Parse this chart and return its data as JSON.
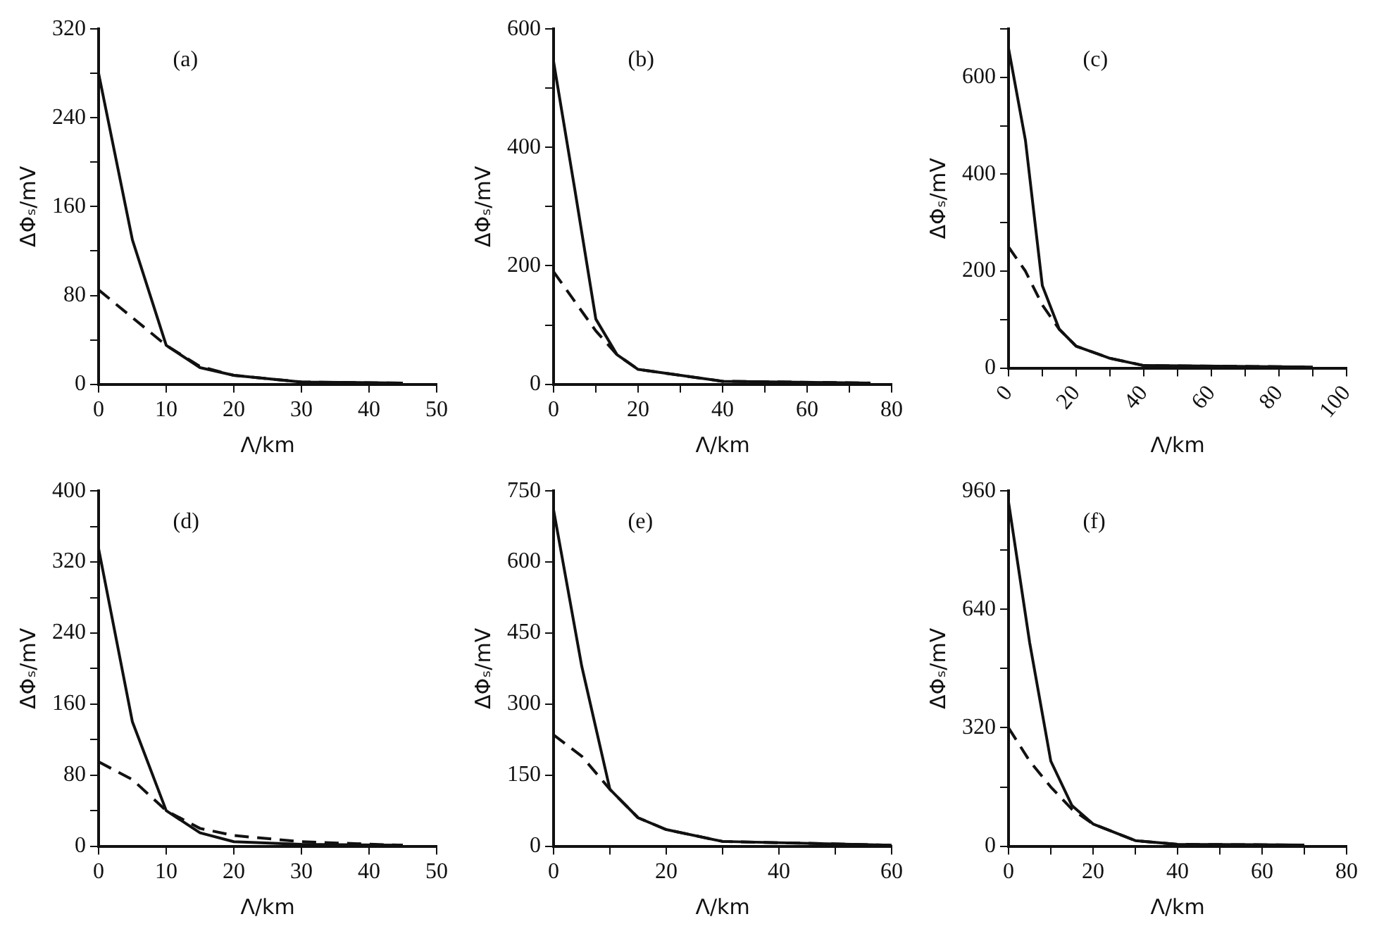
{
  "chart_data": [
    {
      "type": "line",
      "annotations": [
        "(a)"
      ],
      "xlabel": "Λ/km",
      "ylabel": "ΔΦₛ/mV",
      "xlim": [
        0,
        50
      ],
      "xticks": [
        0,
        10,
        20,
        30,
        40,
        50
      ],
      "ylim": [
        0,
        320
      ],
      "yticks": [
        0,
        {
          "value": 40,
          "label": null
        },
        80,
        {
          "value": 120,
          "label": null
        },
        160,
        {
          "value": 200,
          "label": null
        },
        240,
        {
          "value": 280,
          "label": null
        },
        320
      ],
      "grid": false,
      "legend": false,
      "marker": "none",
      "series": [
        {
          "color": "#111111",
          "line_style": "solid",
          "x": [
            0,
            5,
            10,
            15,
            20,
            30,
            45
          ],
          "values": [
            280,
            130,
            35,
            15,
            8,
            2,
            1
          ]
        },
        {
          "color": "#111111",
          "line_style": "dashed",
          "x": [
            0,
            5,
            10,
            15,
            20,
            30,
            45
          ],
          "values": [
            85,
            60,
            35,
            16,
            8,
            2,
            1
          ]
        }
      ]
    },
    {
      "type": "line",
      "annotations": [
        "(b)"
      ],
      "xlabel": "Λ/km",
      "ylabel": "ΔΦₛ/mV",
      "xlim": [
        0,
        80
      ],
      "xticks": [
        0,
        {
          "value": 10,
          "label": null
        },
        20,
        {
          "value": 30,
          "label": null
        },
        40,
        {
          "value": 50,
          "label": null
        },
        60,
        {
          "value": 70,
          "label": null
        },
        80
      ],
      "ylim": [
        0,
        600
      ],
      "yticks": [
        0,
        {
          "value": 100,
          "label": null
        },
        200,
        {
          "value": 300,
          "label": null
        },
        400,
        {
          "value": 500,
          "label": null
        },
        600
      ],
      "grid": false,
      "legend": false,
      "marker": "none",
      "series": [
        {
          "color": "#111111",
          "line_style": "solid",
          "x": [
            0,
            5,
            10,
            15,
            20,
            40,
            75
          ],
          "values": [
            545,
            330,
            110,
            50,
            25,
            5,
            2
          ]
        },
        {
          "color": "#111111",
          "line_style": "dashed",
          "x": [
            0,
            5,
            10,
            15,
            20,
            40,
            75
          ],
          "values": [
            190,
            140,
            90,
            50,
            25,
            5,
            2
          ]
        }
      ]
    },
    {
      "type": "line",
      "annotations": [
        "(c)"
      ],
      "xlabel": "Λ/km",
      "ylabel": "ΔΦₛ/mV",
      "xlim": [
        0,
        100
      ],
      "xticks": [
        0,
        {
          "value": 10,
          "label": null
        },
        20,
        {
          "value": 30,
          "label": null
        },
        40,
        {
          "value": 50,
          "label": null
        },
        60,
        {
          "value": 70,
          "label": null
        },
        80,
        {
          "value": 90,
          "label": null
        },
        100
      ],
      "ylim": [
        0,
        700
      ],
      "yticks": [
        0,
        {
          "value": 100,
          "label": null
        },
        200,
        {
          "value": 300,
          "label": null
        },
        400,
        {
          "value": 500,
          "label": null
        },
        600,
        {
          "value": 700,
          "label": null
        }
      ],
      "grid": false,
      "legend": false,
      "marker": "none",
      "series": [
        {
          "color": "#111111",
          "line_style": "solid",
          "x": [
            0,
            5,
            10,
            15,
            20,
            30,
            40,
            90
          ],
          "values": [
            660,
            470,
            170,
            80,
            45,
            20,
            5,
            2
          ]
        },
        {
          "color": "#111111",
          "line_style": "dashed",
          "x": [
            0,
            5,
            10,
            15,
            20,
            30,
            40,
            90
          ],
          "values": [
            250,
            200,
            130,
            80,
            45,
            20,
            5,
            2
          ]
        }
      ]
    },
    {
      "type": "line",
      "annotations": [
        "(d)"
      ],
      "xlabel": "Λ/km",
      "ylabel": "ΔΦₛ/mV",
      "xlim": [
        0,
        50
      ],
      "xticks": [
        0,
        10,
        20,
        30,
        40,
        50
      ],
      "ylim": [
        0,
        400
      ],
      "yticks": [
        0,
        {
          "value": 40,
          "label": null
        },
        80,
        {
          "value": 120,
          "label": null
        },
        160,
        {
          "value": 200,
          "label": null
        },
        240,
        {
          "value": 280,
          "label": null
        },
        320,
        {
          "value": 360,
          "label": null
        },
        400
      ],
      "grid": false,
      "legend": false,
      "marker": "none",
      "series": [
        {
          "color": "#111111",
          "line_style": "solid",
          "x": [
            0,
            5,
            10,
            15,
            20,
            30,
            45
          ],
          "values": [
            335,
            140,
            40,
            15,
            5,
            2,
            1
          ]
        },
        {
          "color": "#111111",
          "line_style": "dashed",
          "x": [
            0,
            5,
            10,
            15,
            20,
            30,
            45
          ],
          "values": [
            95,
            75,
            40,
            20,
            12,
            5,
            1
          ]
        }
      ]
    },
    {
      "type": "line",
      "annotations": [
        "(e)"
      ],
      "xlabel": "Λ/km",
      "ylabel": "ΔΦₛ/mV",
      "xlim": [
        0,
        60
      ],
      "xticks": [
        0,
        {
          "value": 10,
          "label": null
        },
        20,
        {
          "value": 30,
          "label": null
        },
        40,
        {
          "value": 50,
          "label": null
        },
        60
      ],
      "ylim": [
        0,
        750
      ],
      "yticks": [
        0,
        150,
        300,
        450,
        600,
        750
      ],
      "grid": false,
      "legend": false,
      "marker": "none",
      "series": [
        {
          "color": "#111111",
          "line_style": "solid",
          "x": [
            0,
            5,
            10,
            15,
            20,
            30,
            60
          ],
          "values": [
            710,
            380,
            120,
            60,
            35,
            10,
            2
          ]
        },
        {
          "color": "#111111",
          "line_style": "dashed",
          "x": [
            0,
            5,
            10,
            15,
            20,
            30,
            60
          ],
          "values": [
            235,
            190,
            120,
            60,
            35,
            10,
            2
          ]
        }
      ]
    },
    {
      "type": "line",
      "annotations": [
        "(f)"
      ],
      "xlabel": "Λ/km",
      "ylabel": "ΔΦₛ/mV",
      "xlim": [
        0,
        80
      ],
      "xticks": [
        0,
        {
          "value": 10,
          "label": null
        },
        20,
        {
          "value": 30,
          "label": null
        },
        40,
        {
          "value": 50,
          "label": null
        },
        60,
        {
          "value": 70,
          "label": null
        },
        80
      ],
      "ylim": [
        0,
        960
      ],
      "yticks": [
        0,
        {
          "value": 160,
          "label": null
        },
        320,
        {
          "value": 480,
          "label": null
        },
        640,
        {
          "value": 800,
          "label": null
        },
        960
      ],
      "grid": false,
      "legend": false,
      "marker": "none",
      "series": [
        {
          "color": "#111111",
          "line_style": "solid",
          "x": [
            0,
            5,
            10,
            15,
            20,
            30,
            40,
            70
          ],
          "values": [
            930,
            550,
            230,
            110,
            60,
            15,
            5,
            3
          ]
        },
        {
          "color": "#111111",
          "line_style": "dashed",
          "x": [
            0,
            5,
            10,
            15,
            20,
            30,
            40,
            70
          ],
          "values": [
            320,
            230,
            160,
            100,
            60,
            15,
            5,
            3
          ]
        }
      ]
    }
  ]
}
